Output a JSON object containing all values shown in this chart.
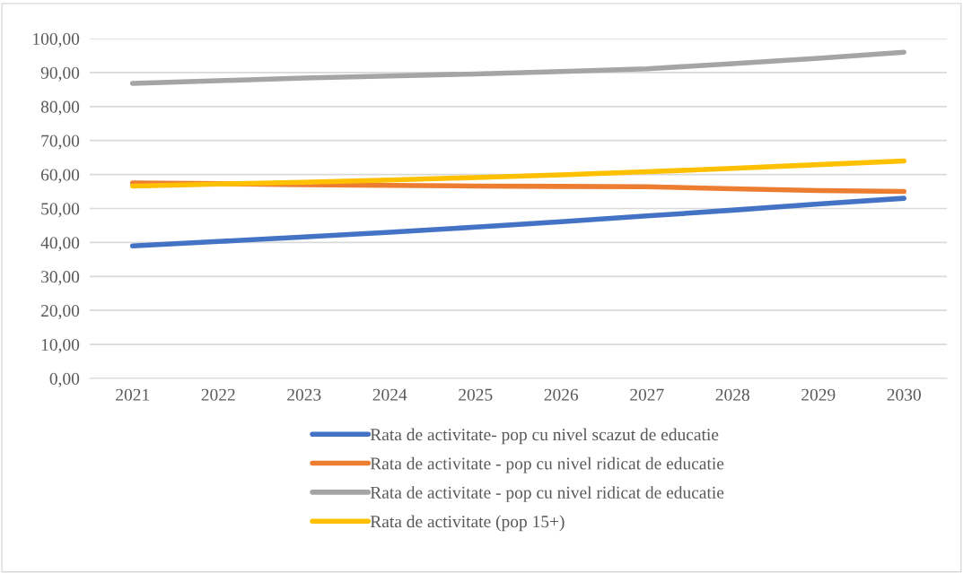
{
  "chart_data": {
    "type": "line",
    "categories": [
      "2021",
      "2022",
      "2023",
      "2024",
      "2025",
      "2026",
      "2027",
      "2028",
      "2029",
      "2030"
    ],
    "series": [
      {
        "name": "Rata de activitate- pop cu nivel scazut de educatie",
        "color": "#4472c4",
        "values": [
          39.0,
          40.3,
          41.6,
          43.0,
          44.5,
          46.1,
          47.8,
          49.5,
          51.3,
          53.0
        ]
      },
      {
        "name": "Rata de activitate - pop cu nivel ridicat de educatie",
        "color": "#ed7d31",
        "values": [
          57.5,
          57.3,
          57.0,
          56.8,
          56.6,
          56.5,
          56.4,
          55.8,
          55.3,
          55.0
        ]
      },
      {
        "name": "Rata de activitate - pop cu nivel ridicat de educatie",
        "color": "#a5a5a5",
        "values": [
          86.8,
          87.6,
          88.4,
          89.0,
          89.6,
          90.3,
          91.1,
          92.6,
          94.2,
          96.0
        ]
      },
      {
        "name": "Rata de activitate (pop 15+)",
        "color": "#ffc000",
        "values": [
          56.6,
          57.2,
          57.7,
          58.4,
          59.1,
          59.9,
          60.8,
          61.8,
          62.9,
          64.0
        ]
      }
    ],
    "ylim": [
      0,
      100
    ],
    "yticks": [
      {
        "value": 0,
        "label": "0,00"
      },
      {
        "value": 10,
        "label": "10,00"
      },
      {
        "value": 20,
        "label": "20,00"
      },
      {
        "value": 30,
        "label": "30,00"
      },
      {
        "value": 40,
        "label": "40,00"
      },
      {
        "value": 50,
        "label": "50,00"
      },
      {
        "value": 60,
        "label": "60,00"
      },
      {
        "value": 70,
        "label": "70,00"
      },
      {
        "value": 80,
        "label": "80,00"
      },
      {
        "value": 90,
        "label": "90,00"
      },
      {
        "value": 100,
        "label": "100,00"
      }
    ],
    "grid": "y",
    "legend": "bottom",
    "marker": "none",
    "line_style": "solid"
  }
}
